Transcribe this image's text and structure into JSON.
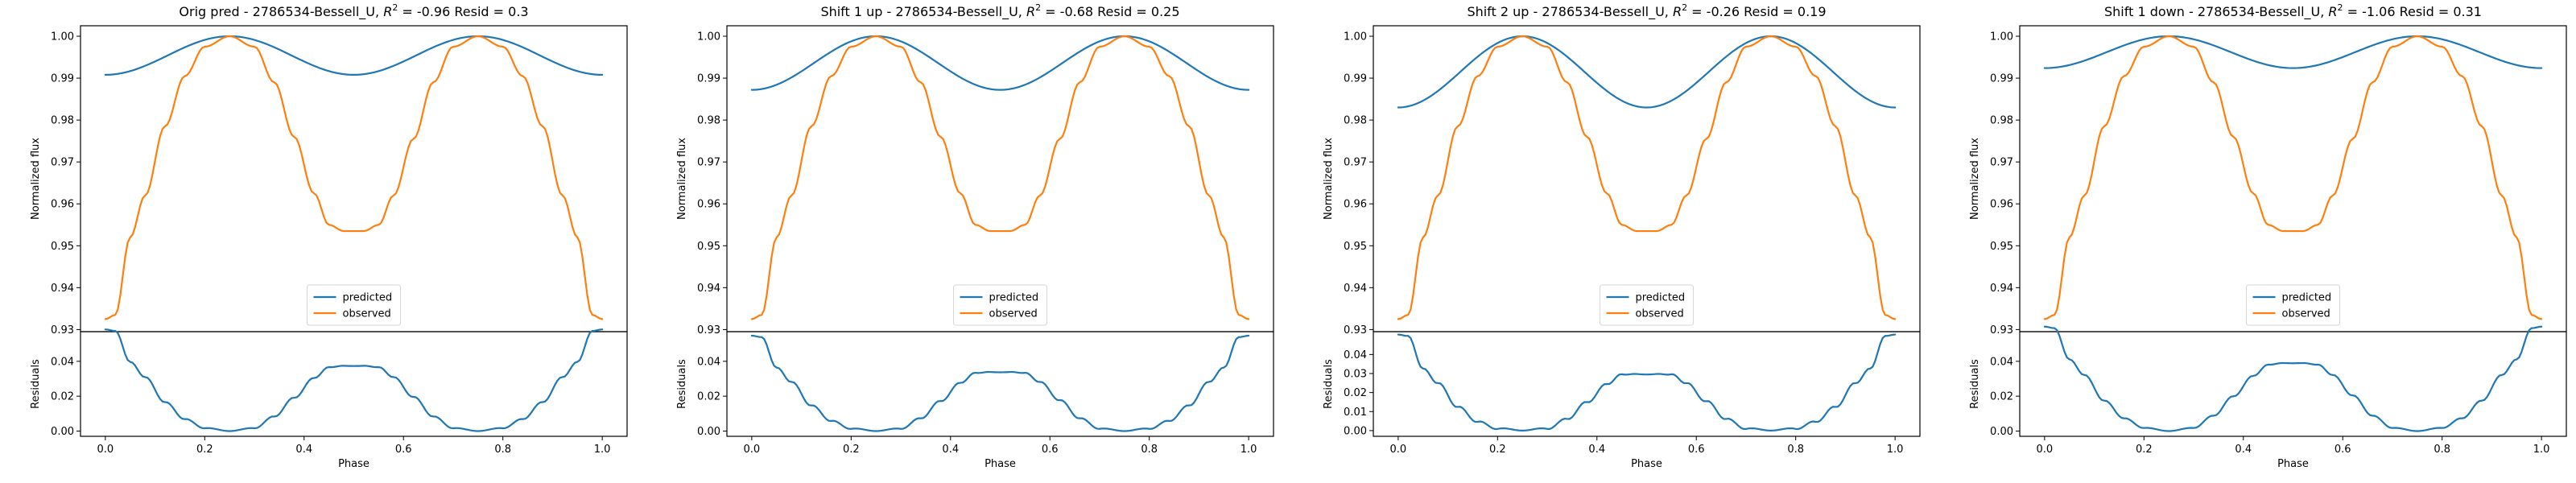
{
  "figure": {
    "colors": {
      "predicted": "#1f77b4",
      "observed": "#ff7f0e",
      "axes": "#000000",
      "background": "#ffffff"
    }
  },
  "chart_data": [
    {
      "type": "line",
      "title_prefix": "Orig pred - 2786534-Bessell_U, ",
      "title_r2_label": "R",
      "title_r2_exp": "2",
      "title_suffix": " = -0.96 Resid = 0.3",
      "xlabel": "Phase",
      "ylabel_top": "Normalized flux",
      "ylabel_bottom": "Residuals",
      "xlim": [
        -0.05,
        1.05
      ],
      "ylim_top": [
        0.9295,
        1.0025
      ],
      "ylim_bottom": [
        -0.003,
        0.057
      ],
      "xticks": [
        "0.0",
        "0.2",
        "0.4",
        "0.6",
        "0.8",
        "1.0"
      ],
      "yticks_top": [
        "0.93",
        "0.94",
        "0.95",
        "0.96",
        "0.97",
        "0.98",
        "0.99",
        "1.00"
      ],
      "yticks_bottom": [
        "0.00",
        "0.02",
        "0.04"
      ],
      "predicted_model": {
        "mean": 0.9954,
        "amplitude": 0.0046,
        "harmonic": 2
      },
      "legend": [
        "predicted",
        "observed"
      ],
      "legend_position": "lower center",
      "series": [
        {
          "name": "predicted",
          "color": "#1f77b4"
        },
        {
          "name": "observed",
          "color": "#ff7f0e"
        }
      ],
      "observed_points": [
        [
          0.0,
          0.9325
        ],
        [
          0.02,
          0.9335
        ],
        [
          0.05,
          0.952
        ],
        [
          0.08,
          0.962
        ],
        [
          0.12,
          0.9785
        ],
        [
          0.16,
          0.9905
        ],
        [
          0.2,
          0.9975
        ],
        [
          0.25,
          1.0
        ],
        [
          0.3,
          0.9975
        ],
        [
          0.34,
          0.989
        ],
        [
          0.38,
          0.976
        ],
        [
          0.42,
          0.9625
        ],
        [
          0.45,
          0.955
        ],
        [
          0.48,
          0.9535
        ],
        [
          0.5,
          0.9535
        ],
        [
          0.52,
          0.9535
        ],
        [
          0.55,
          0.955
        ],
        [
          0.58,
          0.962
        ],
        [
          0.62,
          0.9755
        ],
        [
          0.66,
          0.989
        ],
        [
          0.7,
          0.9975
        ],
        [
          0.75,
          1.0
        ],
        [
          0.8,
          0.9975
        ],
        [
          0.84,
          0.9905
        ],
        [
          0.88,
          0.9785
        ],
        [
          0.92,
          0.962
        ],
        [
          0.95,
          0.952
        ],
        [
          0.98,
          0.9335
        ],
        [
          1.0,
          0.9325
        ]
      ]
    },
    {
      "type": "line",
      "title_prefix": "Shift 1 up - 2786534-Bessell_U, ",
      "title_r2_label": "R",
      "title_r2_exp": "2",
      "title_suffix": " = -0.68 Resid = 0.25",
      "xlabel": "Phase",
      "ylabel_top": "Normalized flux",
      "ylabel_bottom": "Residuals",
      "xlim": [
        -0.05,
        1.05
      ],
      "ylim_top": [
        0.9295,
        1.0025
      ],
      "ylim_bottom": [
        -0.003,
        0.057
      ],
      "xticks": [
        "0.0",
        "0.2",
        "0.4",
        "0.6",
        "0.8",
        "1.0"
      ],
      "yticks_top": [
        "0.93",
        "0.94",
        "0.95",
        "0.96",
        "0.97",
        "0.98",
        "0.99",
        "1.00"
      ],
      "yticks_bottom": [
        "0.00",
        "0.02",
        "0.04"
      ],
      "predicted_model": {
        "mean": 0.9936,
        "amplitude": 0.0064,
        "harmonic": 2
      },
      "legend": [
        "predicted",
        "observed"
      ],
      "legend_position": "lower center",
      "series": [
        {
          "name": "predicted",
          "color": "#1f77b4"
        },
        {
          "name": "observed",
          "color": "#ff7f0e"
        }
      ],
      "observed_points": [
        [
          0.0,
          0.9325
        ],
        [
          0.02,
          0.9335
        ],
        [
          0.05,
          0.952
        ],
        [
          0.08,
          0.962
        ],
        [
          0.12,
          0.9785
        ],
        [
          0.16,
          0.9905
        ],
        [
          0.2,
          0.9975
        ],
        [
          0.25,
          1.0
        ],
        [
          0.3,
          0.9975
        ],
        [
          0.34,
          0.989
        ],
        [
          0.38,
          0.976
        ],
        [
          0.42,
          0.9625
        ],
        [
          0.45,
          0.955
        ],
        [
          0.48,
          0.9535
        ],
        [
          0.5,
          0.9535
        ],
        [
          0.52,
          0.9535
        ],
        [
          0.55,
          0.955
        ],
        [
          0.58,
          0.962
        ],
        [
          0.62,
          0.9755
        ],
        [
          0.66,
          0.989
        ],
        [
          0.7,
          0.9975
        ],
        [
          0.75,
          1.0
        ],
        [
          0.8,
          0.9975
        ],
        [
          0.84,
          0.9905
        ],
        [
          0.88,
          0.9785
        ],
        [
          0.92,
          0.962
        ],
        [
          0.95,
          0.952
        ],
        [
          0.98,
          0.9335
        ],
        [
          1.0,
          0.9325
        ]
      ]
    },
    {
      "type": "line",
      "title_prefix": "Shift 2 up - 2786534-Bessell_U, ",
      "title_r2_label": "R",
      "title_r2_exp": "2",
      "title_suffix": " = -0.26 Resid = 0.19",
      "xlabel": "Phase",
      "ylabel_top": "Normalized flux",
      "ylabel_bottom": "Residuals",
      "xlim": [
        -0.05,
        1.05
      ],
      "ylim_top": [
        0.9295,
        1.0025
      ],
      "ylim_bottom": [
        -0.003,
        0.052
      ],
      "xticks": [
        "0.0",
        "0.2",
        "0.4",
        "0.6",
        "0.8",
        "1.0"
      ],
      "yticks_top": [
        "0.93",
        "0.94",
        "0.95",
        "0.96",
        "0.97",
        "0.98",
        "0.99",
        "1.00"
      ],
      "yticks_bottom": [
        "0.00",
        "0.01",
        "0.02",
        "0.03",
        "0.04"
      ],
      "predicted_model": {
        "mean": 0.9915,
        "amplitude": 0.0085,
        "harmonic": 2
      },
      "legend": [
        "predicted",
        "observed"
      ],
      "legend_position": "lower center",
      "series": [
        {
          "name": "predicted",
          "color": "#1f77b4"
        },
        {
          "name": "observed",
          "color": "#ff7f0e"
        }
      ],
      "observed_points": [
        [
          0.0,
          0.9325
        ],
        [
          0.02,
          0.9335
        ],
        [
          0.05,
          0.952
        ],
        [
          0.08,
          0.962
        ],
        [
          0.12,
          0.9785
        ],
        [
          0.16,
          0.9905
        ],
        [
          0.2,
          0.9975
        ],
        [
          0.25,
          1.0
        ],
        [
          0.3,
          0.9975
        ],
        [
          0.34,
          0.989
        ],
        [
          0.38,
          0.976
        ],
        [
          0.42,
          0.9625
        ],
        [
          0.45,
          0.955
        ],
        [
          0.48,
          0.9535
        ],
        [
          0.5,
          0.9535
        ],
        [
          0.52,
          0.9535
        ],
        [
          0.55,
          0.955
        ],
        [
          0.58,
          0.962
        ],
        [
          0.62,
          0.9755
        ],
        [
          0.66,
          0.989
        ],
        [
          0.7,
          0.9975
        ],
        [
          0.75,
          1.0
        ],
        [
          0.8,
          0.9975
        ],
        [
          0.84,
          0.9905
        ],
        [
          0.88,
          0.9785
        ],
        [
          0.92,
          0.962
        ],
        [
          0.95,
          0.952
        ],
        [
          0.98,
          0.9335
        ],
        [
          1.0,
          0.9325
        ]
      ]
    },
    {
      "type": "line",
      "title_prefix": "Shift 1 down - 2786534-Bessell_U, ",
      "title_r2_label": "R",
      "title_r2_exp": "2",
      "title_suffix": " = -1.06 Resid = 0.31",
      "xlabel": "Phase",
      "ylabel_top": "Normalized flux",
      "ylabel_bottom": "Residuals",
      "xlim": [
        -0.05,
        1.05
      ],
      "ylim_top": [
        0.9295,
        1.0025
      ],
      "ylim_bottom": [
        -0.003,
        0.057
      ],
      "xticks": [
        "0.0",
        "0.2",
        "0.4",
        "0.6",
        "0.8",
        "1.0"
      ],
      "yticks_top": [
        "0.93",
        "0.94",
        "0.95",
        "0.96",
        "0.97",
        "0.98",
        "0.99",
        "1.00"
      ],
      "yticks_bottom": [
        "0.00",
        "0.02",
        "0.04"
      ],
      "predicted_model": {
        "mean": 0.9962,
        "amplitude": 0.0038,
        "harmonic": 2
      },
      "legend": [
        "predicted",
        "observed"
      ],
      "legend_position": "lower center",
      "series": [
        {
          "name": "predicted",
          "color": "#1f77b4"
        },
        {
          "name": "observed",
          "color": "#ff7f0e"
        }
      ],
      "observed_points": [
        [
          0.0,
          0.9325
        ],
        [
          0.02,
          0.9335
        ],
        [
          0.05,
          0.952
        ],
        [
          0.08,
          0.962
        ],
        [
          0.12,
          0.9785
        ],
        [
          0.16,
          0.9905
        ],
        [
          0.2,
          0.9975
        ],
        [
          0.25,
          1.0
        ],
        [
          0.3,
          0.9975
        ],
        [
          0.34,
          0.989
        ],
        [
          0.38,
          0.976
        ],
        [
          0.42,
          0.9625
        ],
        [
          0.45,
          0.955
        ],
        [
          0.48,
          0.9535
        ],
        [
          0.5,
          0.9535
        ],
        [
          0.52,
          0.9535
        ],
        [
          0.55,
          0.955
        ],
        [
          0.58,
          0.962
        ],
        [
          0.62,
          0.9755
        ],
        [
          0.66,
          0.989
        ],
        [
          0.7,
          0.9975
        ],
        [
          0.75,
          1.0
        ],
        [
          0.8,
          0.9975
        ],
        [
          0.84,
          0.9905
        ],
        [
          0.88,
          0.9785
        ],
        [
          0.92,
          0.962
        ],
        [
          0.95,
          0.952
        ],
        [
          0.98,
          0.9335
        ],
        [
          1.0,
          0.9325
        ]
      ]
    }
  ]
}
